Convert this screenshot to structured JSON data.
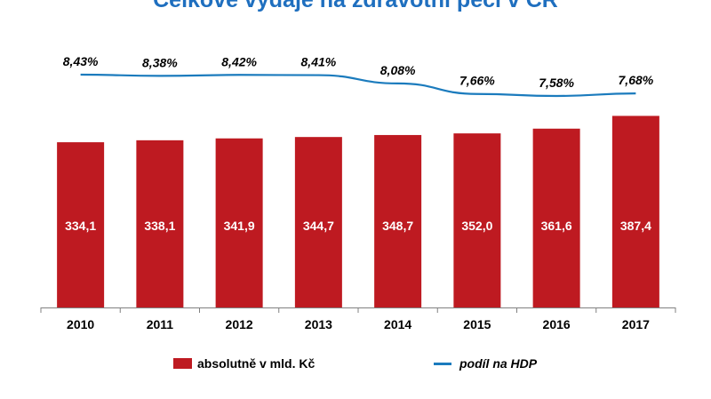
{
  "chart_data": {
    "type": "bar",
    "title": "Celkové výdaje na zdravotní péči v ČR",
    "categories": [
      "2010",
      "2011",
      "2012",
      "2013",
      "2014",
      "2015",
      "2016",
      "2017"
    ],
    "series": [
      {
        "name": "absolutně v mld. Kč",
        "type": "bar",
        "values": [
          334.1,
          338.1,
          341.9,
          344.7,
          348.7,
          352.0,
          361.6,
          387.4
        ],
        "labels": [
          "334,1",
          "338,1",
          "341,9",
          "344,7",
          "348,7",
          "352,0",
          "361,6",
          "387,4"
        ],
        "color": "#be1a21"
      },
      {
        "name": "podíl na HDP",
        "type": "line",
        "values": [
          8.43,
          8.38,
          8.42,
          8.41,
          8.08,
          7.66,
          7.58,
          7.68
        ],
        "labels": [
          "8,43%",
          "8,38%",
          "8,42%",
          "8,41%",
          "8,08%",
          "7,66%",
          "7,58%",
          "7,68%"
        ],
        "color": "#1b7bbd"
      }
    ],
    "legend_position": "bottom",
    "grid": false
  }
}
